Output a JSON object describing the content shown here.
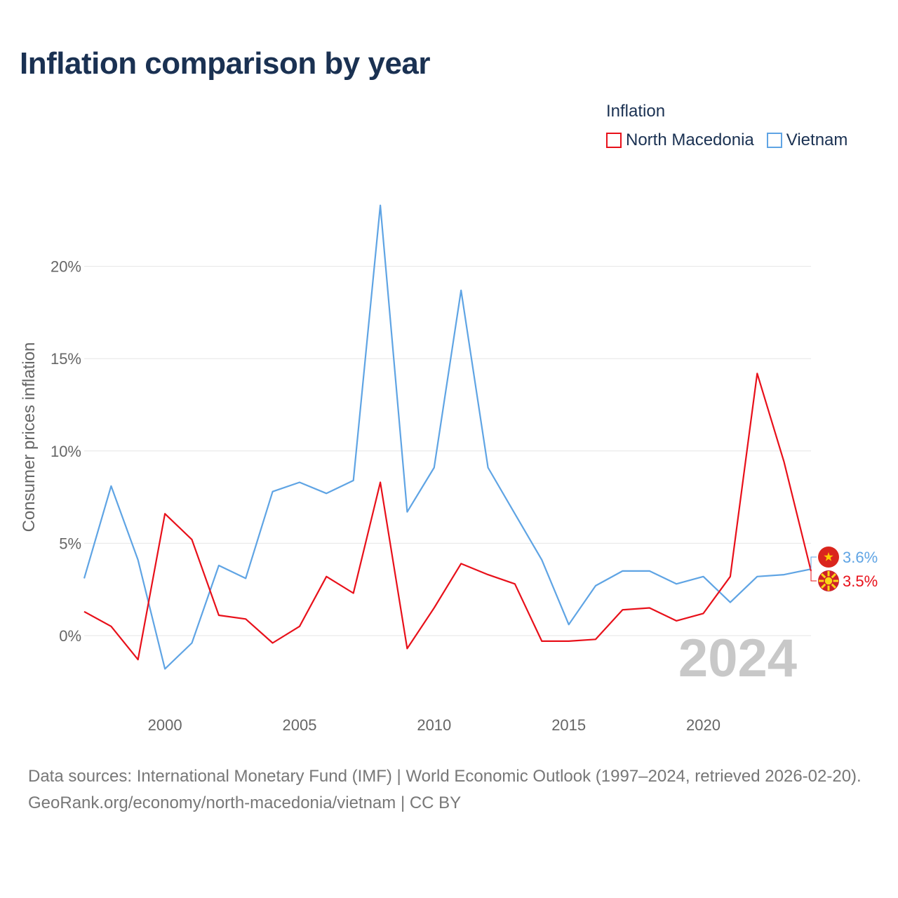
{
  "chart_data": {
    "type": "line",
    "title": "Inflation comparison by year",
    "legend_title": "Inflation",
    "ylabel": "Consumer prices inflation",
    "xlabel": "",
    "x": [
      1997,
      1998,
      1999,
      2000,
      2001,
      2002,
      2003,
      2004,
      2005,
      2006,
      2007,
      2008,
      2009,
      2010,
      2011,
      2012,
      2013,
      2014,
      2015,
      2016,
      2017,
      2018,
      2019,
      2020,
      2021,
      2022,
      2023,
      2024
    ],
    "xlim": [
      1997,
      2024
    ],
    "ylim": [
      -3,
      25
    ],
    "yticks": [
      0,
      5,
      10,
      15,
      20
    ],
    "ytick_labels": [
      "0%",
      "5%",
      "10%",
      "15%",
      "20%"
    ],
    "xticks": [
      2000,
      2005,
      2010,
      2015,
      2020
    ],
    "xtick_labels": [
      "2000",
      "2005",
      "2010",
      "2015",
      "2020"
    ],
    "grid": true,
    "legend_position": "top-right",
    "year_watermark": "2024",
    "series": [
      {
        "name": "North Macedonia",
        "color": "#e8101a",
        "values": [
          1.3,
          0.5,
          -1.3,
          6.6,
          5.2,
          1.1,
          0.9,
          -0.4,
          0.5,
          3.2,
          2.3,
          8.3,
          -0.7,
          1.5,
          3.9,
          3.3,
          2.8,
          -0.3,
          -0.3,
          -0.2,
          1.4,
          1.5,
          0.8,
          1.2,
          3.2,
          14.2,
          9.4,
          3.5
        ],
        "end_label": "3.5%",
        "flag": "north-macedonia-flag-icon"
      },
      {
        "name": "Vietnam",
        "color": "#5fa4e4",
        "values": [
          3.1,
          8.1,
          4.1,
          -1.8,
          -0.4,
          3.8,
          3.1,
          7.8,
          8.3,
          7.7,
          8.4,
          23.3,
          6.7,
          9.1,
          18.7,
          9.1,
          6.6,
          4.1,
          0.6,
          2.7,
          3.5,
          3.5,
          2.8,
          3.2,
          1.8,
          3.2,
          3.3,
          3.6
        ],
        "end_label": "3.6%",
        "flag": "vietnam-flag-icon"
      }
    ]
  },
  "footer": {
    "sources": "Data sources: International Monetary Fund (IMF) | World Economic Outlook (1997–2024, retrieved 2026-02-20).",
    "credit": "GeoRank.org/economy/north-macedonia/vietnam | CC BY"
  }
}
